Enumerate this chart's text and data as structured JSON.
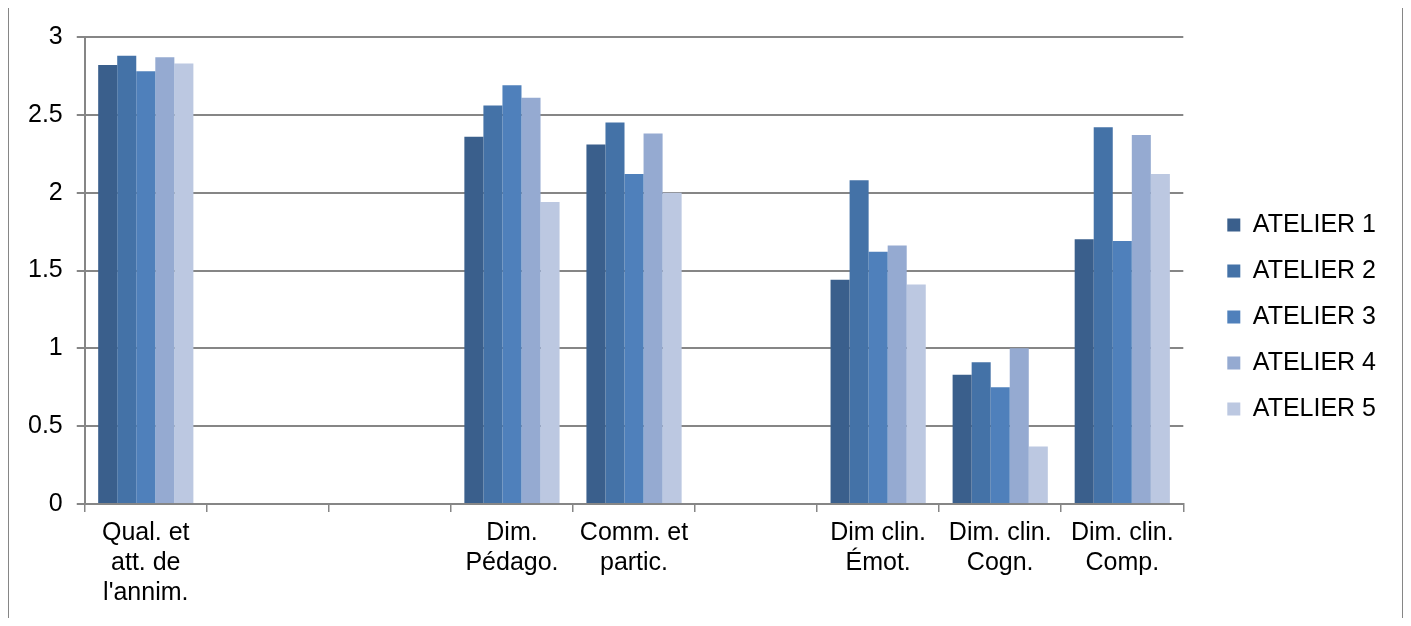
{
  "chart_data": {
    "type": "bar",
    "categories": [
      "Qual. et att. de l'annim.",
      null,
      null,
      "Dim. Pédago.",
      "Comm. et partic.",
      null,
      "Dim clin. Émot.",
      "Dim. clin. Cogn.",
      "Dim. clin. Comp."
    ],
    "series": [
      {
        "name": "ATELIER 1",
        "color": "#3a5f8c",
        "values": [
          2.82,
          null,
          null,
          2.36,
          2.31,
          null,
          1.44,
          0.83,
          1.7
        ]
      },
      {
        "name": "ATELIER 2",
        "color": "#4472a7",
        "values": [
          2.88,
          null,
          null,
          2.56,
          2.45,
          null,
          2.08,
          0.91,
          2.42
        ]
      },
      {
        "name": "ATELIER 3",
        "color": "#4f80bb",
        "values": [
          2.78,
          null,
          null,
          2.69,
          2.12,
          null,
          1.62,
          0.75,
          1.69
        ]
      },
      {
        "name": "ATELIER 4",
        "color": "#95aad1",
        "values": [
          2.87,
          null,
          null,
          2.61,
          2.38,
          null,
          1.66,
          1.0,
          2.37
        ]
      },
      {
        "name": "ATELIER 5",
        "color": "#bcc8e1",
        "values": [
          2.83,
          null,
          null,
          1.94,
          2.0,
          null,
          1.41,
          0.37,
          2.12
        ]
      }
    ],
    "ylim": [
      0,
      3
    ],
    "yticks": [
      0,
      0.5,
      1,
      1.5,
      2,
      2.5,
      3
    ],
    "grid": "y",
    "legend": "right"
  }
}
